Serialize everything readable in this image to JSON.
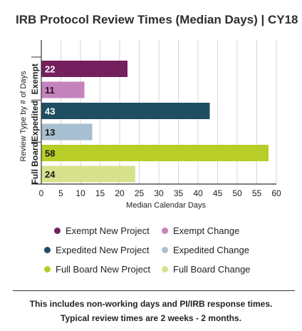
{
  "chart_data": {
    "type": "bar",
    "orientation": "horizontal",
    "title": "IRB Protocol Review Times (Median Days) | CY18",
    "xlabel": "Median Calendar Days",
    "ylabel": "Review Type by # of Days",
    "xlim": [
      0,
      60
    ],
    "xticks": [
      "0",
      "5",
      "10",
      "15",
      "20",
      "25",
      "30",
      "35",
      "40",
      "45",
      "50",
      "55",
      "60"
    ],
    "grid": "vertical",
    "legend_position": "bottom",
    "groups": [
      {
        "label": "Exempt",
        "bars": [
          {
            "series": "Exempt New Project",
            "value": 22,
            "label": "22"
          },
          {
            "series": "Exempt Change",
            "value": 11,
            "label": "11"
          }
        ]
      },
      {
        "label": "Expedited",
        "bars": [
          {
            "series": "Expedited New Project",
            "value": 43,
            "label": "43"
          },
          {
            "series": "Expedited Change",
            "value": 13,
            "label": "13"
          }
        ]
      },
      {
        "label": "Full Board",
        "bars": [
          {
            "series": "Full Board New Project",
            "value": 58,
            "label": "58"
          },
          {
            "series": "Full Board Change",
            "value": 24,
            "label": "24"
          }
        ]
      }
    ],
    "series": [
      {
        "name": "Exempt New Project",
        "color": "#74205f"
      },
      {
        "name": "Exempt Change",
        "color": "#c583bd"
      },
      {
        "name": "Expedited New Project",
        "color": "#1f4e63"
      },
      {
        "name": "Expedited Change",
        "color": "#a7bfd0"
      },
      {
        "name": "Full Board New Project",
        "color": "#b8cd27"
      },
      {
        "name": "Full Board Change",
        "color": "#d8e28d"
      }
    ]
  },
  "footnote": {
    "line1": "This includes non-working days and PI/IRB response times.",
    "line2": "Typical review times are 2 weeks - 2 months."
  }
}
